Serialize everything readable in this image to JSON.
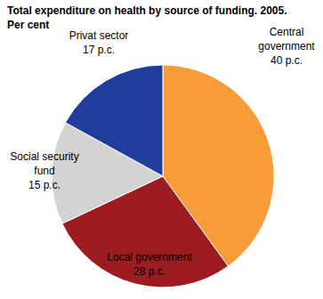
{
  "chart_data": {
    "type": "pie",
    "title": "Total expenditure on health by source of funding. 2005.",
    "subtitle": "Per cent",
    "categories": [
      "Central government",
      "Local government",
      "Social security fund",
      "Privat sector"
    ],
    "values": [
      40,
      28,
      15,
      17
    ],
    "value_labels": [
      "40 p.c.",
      "28 p.c.",
      "15 p.c.",
      "17 p.c."
    ],
    "colors": [
      "#f79c38",
      "#9c1c22",
      "#d3d3d3",
      "#1f3e9b"
    ],
    "data_labels": true
  }
}
